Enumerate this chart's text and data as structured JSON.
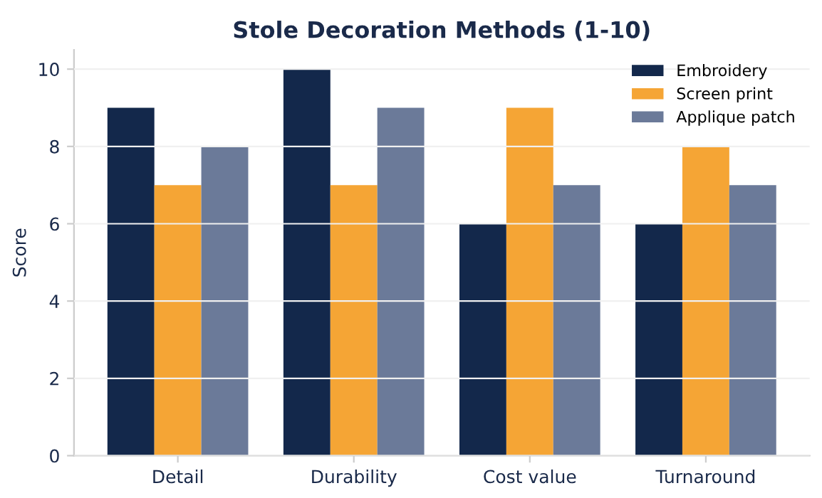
{
  "chart_data": {
    "type": "bar",
    "title": "Stole Decoration Methods (1-10)",
    "ylabel": "Score",
    "categories": [
      "Detail",
      "Durability",
      "Cost value",
      "Turnaround"
    ],
    "series": [
      {
        "name": "Embroidery",
        "color": "#13284b",
        "values": [
          9,
          10,
          6,
          6
        ]
      },
      {
        "name": "Screen print",
        "color": "#f5a535",
        "values": [
          7,
          7,
          9,
          8
        ]
      },
      {
        "name": "Applique patch",
        "color": "#6b7a99",
        "values": [
          8,
          9,
          7,
          7
        ]
      }
    ],
    "ylim": [
      0,
      10.5
    ],
    "yticks": [
      0,
      2,
      4,
      6,
      8,
      10
    ],
    "grid": "y",
    "legend": "top right"
  }
}
